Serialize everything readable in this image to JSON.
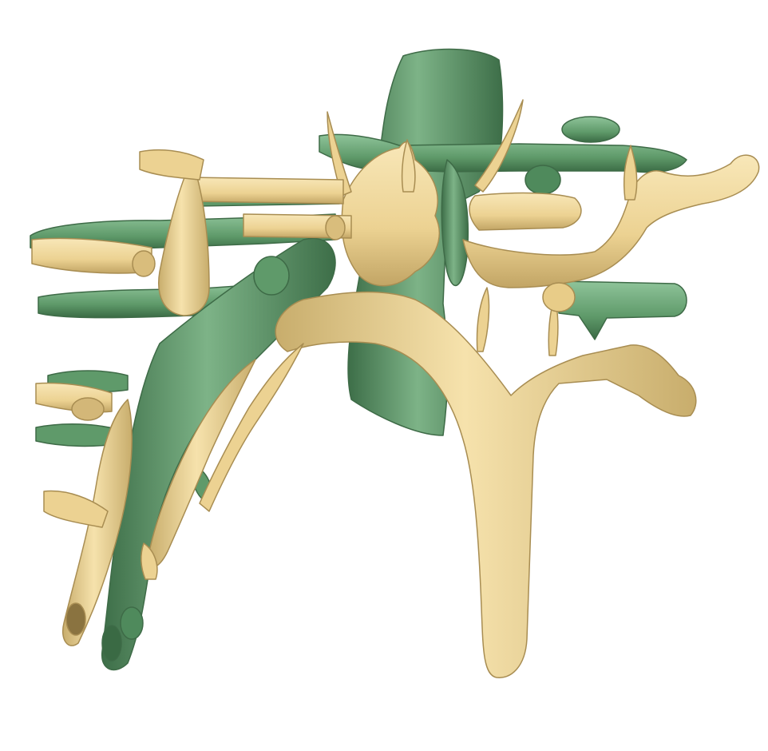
{
  "scene": {
    "background": "#ffffff",
    "structures": [
      {
        "name": "green-vessel-tree",
        "color": "#5f9a6a",
        "highlight": "#8fc49a",
        "shadow": "#2f5a38"
      },
      {
        "name": "tan-vessel-tree",
        "color": "#ecd292",
        "highlight": "#f8e7b8",
        "shadow": "#9e8650"
      }
    ]
  }
}
